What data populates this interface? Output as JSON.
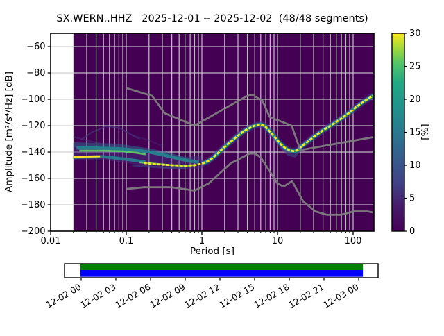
{
  "title": "SX.WERN..HHZ   2025-12-01 -- 2025-12-02  (48/48 segments)",
  "chart_data": {
    "type": "heatmap",
    "subtype": "ppsd-probabilistic-power-spectral-density",
    "title": "SX.WERN..HHZ   2025-12-01 -- 2025-12-02  (48/48 segments)",
    "xlabel": "Period [s]",
    "ylabel": "Amplitude [m²/s⁴/Hz] [dB]",
    "x_scale": "log",
    "xlim": [
      0.01,
      188
    ],
    "ylim": [
      -200,
      -50
    ],
    "grid": true,
    "background_color": "#440154",
    "grid_color": "#cdcdcd",
    "noise_model_color": "#7f7f7f",
    "data_period_range": [
      0.02,
      188
    ],
    "x_ticks": [
      {
        "value": 0.01,
        "label": "0.01"
      },
      {
        "value": 0.1,
        "label": "0.1"
      },
      {
        "value": 1,
        "label": "1"
      },
      {
        "value": 10,
        "label": "10"
      },
      {
        "value": 100,
        "label": "100"
      }
    ],
    "y_ticks": [
      {
        "value": -60,
        "label": "−60"
      },
      {
        "value": -80,
        "label": "−80"
      },
      {
        "value": -100,
        "label": "−100"
      },
      {
        "value": -120,
        "label": "−120"
      },
      {
        "value": -140,
        "label": "−140"
      },
      {
        "value": -160,
        "label": "−160"
      },
      {
        "value": -180,
        "label": "−180"
      },
      {
        "value": -200,
        "label": "−200"
      }
    ],
    "colorbar": {
      "label": "[%]",
      "lim": [
        0,
        30
      ],
      "ticks": [
        0,
        5,
        10,
        15,
        20,
        25,
        30
      ],
      "colormap": "viridis",
      "stops": [
        [
          0.0,
          "#440154"
        ],
        [
          0.13,
          "#471d6c"
        ],
        [
          0.25,
          "#414487"
        ],
        [
          0.38,
          "#355f8d"
        ],
        [
          0.5,
          "#2a788e"
        ],
        [
          0.62,
          "#21918c"
        ],
        [
          0.75,
          "#22a884"
        ],
        [
          0.85,
          "#54c568"
        ],
        [
          0.93,
          "#a5db36"
        ],
        [
          1.0,
          "#fde725"
        ]
      ]
    },
    "noise_models": {
      "high": [
        [
          0.1,
          -91.5
        ],
        [
          0.22,
          -97.4
        ],
        [
          0.32,
          -110.5
        ],
        [
          0.8,
          -120.0
        ],
        [
          3.8,
          -98.0
        ],
        [
          4.6,
          -96.5
        ],
        [
          6.3,
          -101.0
        ],
        [
          7.9,
          -113.5
        ],
        [
          15.4,
          -120.0
        ],
        [
          20.0,
          -138.5
        ],
        [
          185,
          -128.7
        ]
      ],
      "low": [
        [
          0.1,
          -168.0
        ],
        [
          0.17,
          -166.7
        ],
        [
          0.4,
          -166.7
        ],
        [
          0.8,
          -169.2
        ],
        [
          1.24,
          -163.7
        ],
        [
          2.4,
          -148.6
        ],
        [
          4.3,
          -141.1
        ],
        [
          5.0,
          -141.1
        ],
        [
          6.0,
          -144.0
        ],
        [
          10.0,
          -163.8
        ],
        [
          12.0,
          -166.2
        ],
        [
          15.6,
          -162.1
        ],
        [
          21.9,
          -177.5
        ],
        [
          31.6,
          -185.0
        ],
        [
          45.0,
          -187.5
        ],
        [
          70.0,
          -187.5
        ],
        [
          101.0,
          -185.0
        ],
        [
          154.0,
          -185.0
        ],
        [
          185,
          -185.8
        ]
      ]
    },
    "psd_mode": [
      [
        0.02,
        -143.6
      ],
      [
        0.05,
        -142.8
      ],
      [
        0.1,
        -145.5
      ],
      [
        0.17,
        -148.3
      ],
      [
        0.25,
        -149.2
      ],
      [
        0.4,
        -150
      ],
      [
        0.6,
        -150.3
      ],
      [
        0.8,
        -150
      ],
      [
        1.0,
        -148.8
      ],
      [
        1.2,
        -147
      ],
      [
        1.45,
        -143.5
      ],
      [
        1.8,
        -138.5
      ],
      [
        2.2,
        -134
      ],
      [
        2.8,
        -129
      ],
      [
        3.5,
        -124.5
      ],
      [
        4.5,
        -121
      ],
      [
        5.2,
        -119.6
      ],
      [
        6.0,
        -119
      ],
      [
        6.8,
        -120.2
      ],
      [
        7.5,
        -123
      ],
      [
        9,
        -128
      ],
      [
        11,
        -134
      ],
      [
        13,
        -137.5
      ],
      [
        15,
        -139
      ],
      [
        17,
        -139.5
      ],
      [
        19,
        -138
      ],
      [
        21,
        -135.5
      ],
      [
        24,
        -133
      ],
      [
        30,
        -128.5
      ],
      [
        40,
        -123.5
      ],
      [
        55,
        -118.5
      ],
      [
        70,
        -114.5
      ],
      [
        90,
        -110
      ],
      [
        110,
        -105.8
      ],
      [
        140,
        -101.5
      ],
      [
        175,
        -98
      ],
      [
        185,
        -97.3
      ]
    ],
    "psd_bands": [
      {
        "name": "left-spread-halo",
        "color": "#46327e",
        "width": 18,
        "opacity": 0.5,
        "points": [
          [
            0.02,
            -141
          ],
          [
            0.05,
            -141
          ],
          [
            0.1,
            -143.5
          ],
          [
            0.2,
            -146
          ],
          [
            0.35,
            -147.5
          ],
          [
            0.6,
            -148.5
          ],
          [
            1.0,
            -147.5
          ]
        ]
      },
      {
        "name": "left-upper-fuzz",
        "color": "#31688e",
        "width": 7,
        "opacity": 0.55,
        "points": [
          [
            0.02,
            -134.5
          ],
          [
            0.04,
            -135
          ],
          [
            0.07,
            -135.5
          ],
          [
            0.1,
            -136.5
          ],
          [
            0.15,
            -138
          ],
          [
            0.22,
            -139.5
          ],
          [
            0.32,
            -141.5
          ],
          [
            0.5,
            -144.5
          ],
          [
            0.75,
            -147
          ]
        ]
      },
      {
        "name": "left-teal-upper",
        "color": "#26828e",
        "width": 4.5,
        "opacity": 0.95,
        "points": [
          [
            0.022,
            -137
          ],
          [
            0.04,
            -137
          ],
          [
            0.08,
            -137.5
          ],
          [
            0.13,
            -138.5
          ],
          [
            0.2,
            -140
          ],
          [
            0.3,
            -142
          ],
          [
            0.45,
            -144.5
          ],
          [
            0.65,
            -146.5
          ],
          [
            0.9,
            -147.8
          ]
        ]
      },
      {
        "name": "left-green-upper",
        "color": "#5ec962",
        "width": 2.6,
        "opacity": 0.95,
        "points": [
          [
            0.024,
            -139
          ],
          [
            0.05,
            -139
          ],
          [
            0.09,
            -139.5
          ],
          [
            0.13,
            -140.5
          ],
          [
            0.18,
            -141.8
          ]
        ]
      },
      {
        "name": "left-teal-lower",
        "color": "#26828e",
        "width": 4.5,
        "opacity": 0.9,
        "points": [
          [
            0.02,
            -144
          ],
          [
            0.05,
            -143.5
          ],
          [
            0.1,
            -145.5
          ],
          [
            0.18,
            -147.5
          ]
        ]
      },
      {
        "name": "left-green-lower",
        "color": "#5ec962",
        "width": 2.6,
        "opacity": 0.95,
        "points": [
          [
            0.15,
            -147.8
          ],
          [
            0.25,
            -149
          ],
          [
            0.4,
            -150
          ],
          [
            0.6,
            -150.4
          ],
          [
            0.85,
            -149.8
          ]
        ]
      },
      {
        "name": "left-yellow-segment",
        "color": "#fde725",
        "width": 2.8,
        "opacity": 1,
        "points": [
          [
            0.02,
            -143.6
          ],
          [
            0.045,
            -143.2
          ]
        ]
      },
      {
        "name": "left-bottom-fringe",
        "color": "#3b528b",
        "width": 3,
        "opacity": 0.5,
        "points": [
          [
            0.12,
            -150
          ],
          [
            0.2,
            -151
          ],
          [
            0.35,
            -152
          ],
          [
            0.6,
            -152.3
          ]
        ]
      },
      {
        "name": "wisp-arc",
        "color": "#46327e",
        "width": 2.2,
        "opacity": 0.65,
        "points": [
          [
            0.025,
            -131
          ],
          [
            0.035,
            -125
          ],
          [
            0.055,
            -120.5
          ],
          [
            0.08,
            -121.5
          ],
          [
            0.11,
            -126
          ],
          [
            0.15,
            -130
          ]
        ]
      },
      {
        "name": "wisp-left",
        "color": "#46327e",
        "width": 2.2,
        "opacity": 0.5,
        "points": [
          [
            0.02,
            -128.5
          ],
          [
            0.032,
            -131.5
          ],
          [
            0.05,
            -134
          ]
        ]
      },
      {
        "name": "wisp-right",
        "color": "#46327e",
        "width": 2,
        "opacity": 0.4,
        "points": [
          [
            0.12,
            -127.5
          ],
          [
            0.2,
            -131
          ],
          [
            0.3,
            -135.5
          ]
        ]
      },
      {
        "name": "dip-fringe",
        "color": "#355f8d",
        "width": 4,
        "opacity": 0.5,
        "points": [
          [
            11,
            -136
          ],
          [
            14,
            -142
          ],
          [
            17,
            -143
          ],
          [
            20,
            -138
          ]
        ]
      },
      {
        "name": "mode-halo",
        "color": "#443983",
        "width": 9,
        "opacity": 0.55,
        "points": [
          [
            1.0,
            -148.8
          ],
          [
            1.2,
            -147
          ],
          [
            1.45,
            -143.5
          ],
          [
            1.8,
            -138.5
          ],
          [
            2.2,
            -134
          ],
          [
            2.8,
            -129
          ],
          [
            3.5,
            -124.5
          ],
          [
            4.5,
            -121
          ],
          [
            5.2,
            -119.6
          ],
          [
            6.0,
            -119
          ],
          [
            6.8,
            -120.2
          ],
          [
            7.5,
            -123
          ],
          [
            9,
            -128
          ],
          [
            11,
            -134
          ],
          [
            13,
            -137.5
          ],
          [
            15,
            -139
          ],
          [
            17,
            -139.5
          ],
          [
            19,
            -138
          ],
          [
            21,
            -135.5
          ],
          [
            24,
            -133
          ],
          [
            30,
            -128.5
          ],
          [
            40,
            -123.5
          ],
          [
            55,
            -118.5
          ],
          [
            70,
            -114.5
          ],
          [
            90,
            -110
          ],
          [
            110,
            -105.8
          ],
          [
            140,
            -101.5
          ],
          [
            175,
            -98
          ],
          [
            185,
            -97.3
          ]
        ]
      },
      {
        "name": "mode-teal",
        "color": "#21918c",
        "width": 5,
        "opacity": 0.95,
        "points": [
          [
            1.0,
            -148.8
          ],
          [
            1.2,
            -147
          ],
          [
            1.45,
            -143.5
          ],
          [
            1.8,
            -138.5
          ],
          [
            2.2,
            -134
          ],
          [
            2.8,
            -129
          ],
          [
            3.5,
            -124.5
          ],
          [
            4.5,
            -121
          ],
          [
            5.2,
            -119.6
          ],
          [
            6.0,
            -119
          ],
          [
            6.8,
            -120.2
          ],
          [
            7.5,
            -123
          ],
          [
            9,
            -128
          ],
          [
            11,
            -134
          ],
          [
            13,
            -137.5
          ],
          [
            15,
            -139
          ],
          [
            17,
            -139.5
          ],
          [
            19,
            -138
          ],
          [
            21,
            -135.5
          ],
          [
            24,
            -133
          ],
          [
            30,
            -128.5
          ],
          [
            40,
            -123.5
          ],
          [
            55,
            -118.5
          ],
          [
            70,
            -114.5
          ],
          [
            90,
            -110
          ],
          [
            110,
            -105.8
          ],
          [
            140,
            -101.5
          ],
          [
            175,
            -98
          ],
          [
            185,
            -97.3
          ]
        ]
      },
      {
        "name": "mode-yellow",
        "color": "#fde725",
        "width": 2.8,
        "opacity": 1,
        "dash": "4.5 2",
        "points": [
          [
            0.17,
            -148.3
          ],
          [
            0.25,
            -149.2
          ],
          [
            0.4,
            -150
          ],
          [
            0.6,
            -150.3
          ],
          [
            0.8,
            -150
          ],
          [
            1.0,
            -148.8
          ],
          [
            1.2,
            -147
          ],
          [
            1.45,
            -143.5
          ],
          [
            1.8,
            -138.5
          ],
          [
            2.2,
            -134
          ],
          [
            2.8,
            -129
          ],
          [
            3.5,
            -124.5
          ],
          [
            4.5,
            -121
          ],
          [
            5.2,
            -119.6
          ],
          [
            6.0,
            -119
          ],
          [
            6.8,
            -120.2
          ],
          [
            7.5,
            -123
          ],
          [
            9,
            -128
          ],
          [
            11,
            -134
          ],
          [
            13,
            -137.5
          ],
          [
            15,
            -139
          ],
          [
            17,
            -139.5
          ],
          [
            19,
            -138
          ],
          [
            21,
            -135.5
          ],
          [
            24,
            -133
          ],
          [
            30,
            -128.5
          ],
          [
            40,
            -123.5
          ],
          [
            55,
            -118.5
          ],
          [
            70,
            -114.5
          ],
          [
            90,
            -110
          ],
          [
            110,
            -105.8
          ],
          [
            140,
            -101.5
          ],
          [
            175,
            -98
          ],
          [
            185,
            -97.3
          ]
        ]
      }
    ]
  },
  "timeline": {
    "labels": [
      "12-02 00",
      "12-02 03",
      "12-02 06",
      "12-02 09",
      "12-02 12",
      "12-02 15",
      "12-02 18",
      "12-02 21",
      "12-03 00"
    ],
    "coverage_colors": [
      "#008000",
      "#0000ff"
    ],
    "box_color": "#ffffff"
  }
}
